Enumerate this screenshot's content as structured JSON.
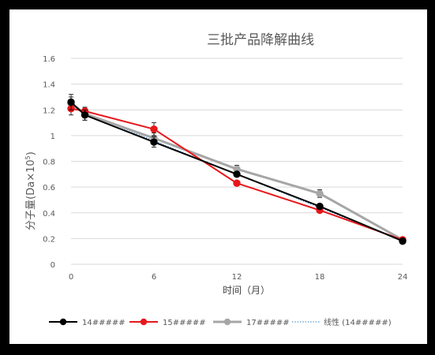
{
  "chart_data": {
    "type": "line",
    "title": "三批产品降解曲线",
    "xlabel": "时间（月）",
    "ylabel_main": "分子量(Da×10",
    "ylabel_sup": "5",
    "ylabel_close": ")",
    "x": [
      0,
      1,
      6,
      12,
      18,
      24
    ],
    "x_ticks": [
      0,
      6,
      12,
      18,
      24
    ],
    "y_ticks": [
      0,
      0.2,
      0.4,
      0.6,
      0.8,
      1,
      1.2,
      1.4,
      1.6
    ],
    "y_tick_labels": [
      "0",
      "0.2",
      "0.4",
      "0.6",
      "0.8",
      "1",
      "1.2",
      "1.4",
      "1.6"
    ],
    "xlim": [
      0,
      24
    ],
    "ylim": [
      0,
      1.6
    ],
    "grid": true,
    "legend_position": "bottom",
    "series": [
      {
        "name": "14#####",
        "color": "#000000",
        "values": [
          1.26,
          1.16,
          0.95,
          0.7,
          0.45,
          0.18
        ],
        "err": [
          0.06,
          0.04,
          0.04,
          0.02,
          0.02,
          0.01
        ]
      },
      {
        "name": "15#####",
        "color": "#e8171b",
        "values": [
          1.21,
          1.19,
          1.05,
          0.63,
          0.42,
          0.19
        ],
        "err": [
          0.05,
          0.03,
          0.05,
          0.02,
          0.01,
          0.01
        ]
      },
      {
        "name": "17#####",
        "color": "#a6a6a6",
        "values": [
          1.25,
          1.17,
          0.98,
          0.74,
          0.55,
          0.19
        ],
        "err": [
          0.05,
          0.05,
          0.04,
          0.03,
          0.03,
          0.01
        ]
      }
    ],
    "trendline": {
      "name": "线性 (14#####)",
      "color": "#5b9bd5",
      "x": [
        0,
        24
      ],
      "values": [
        1.22,
        0.18
      ]
    }
  }
}
